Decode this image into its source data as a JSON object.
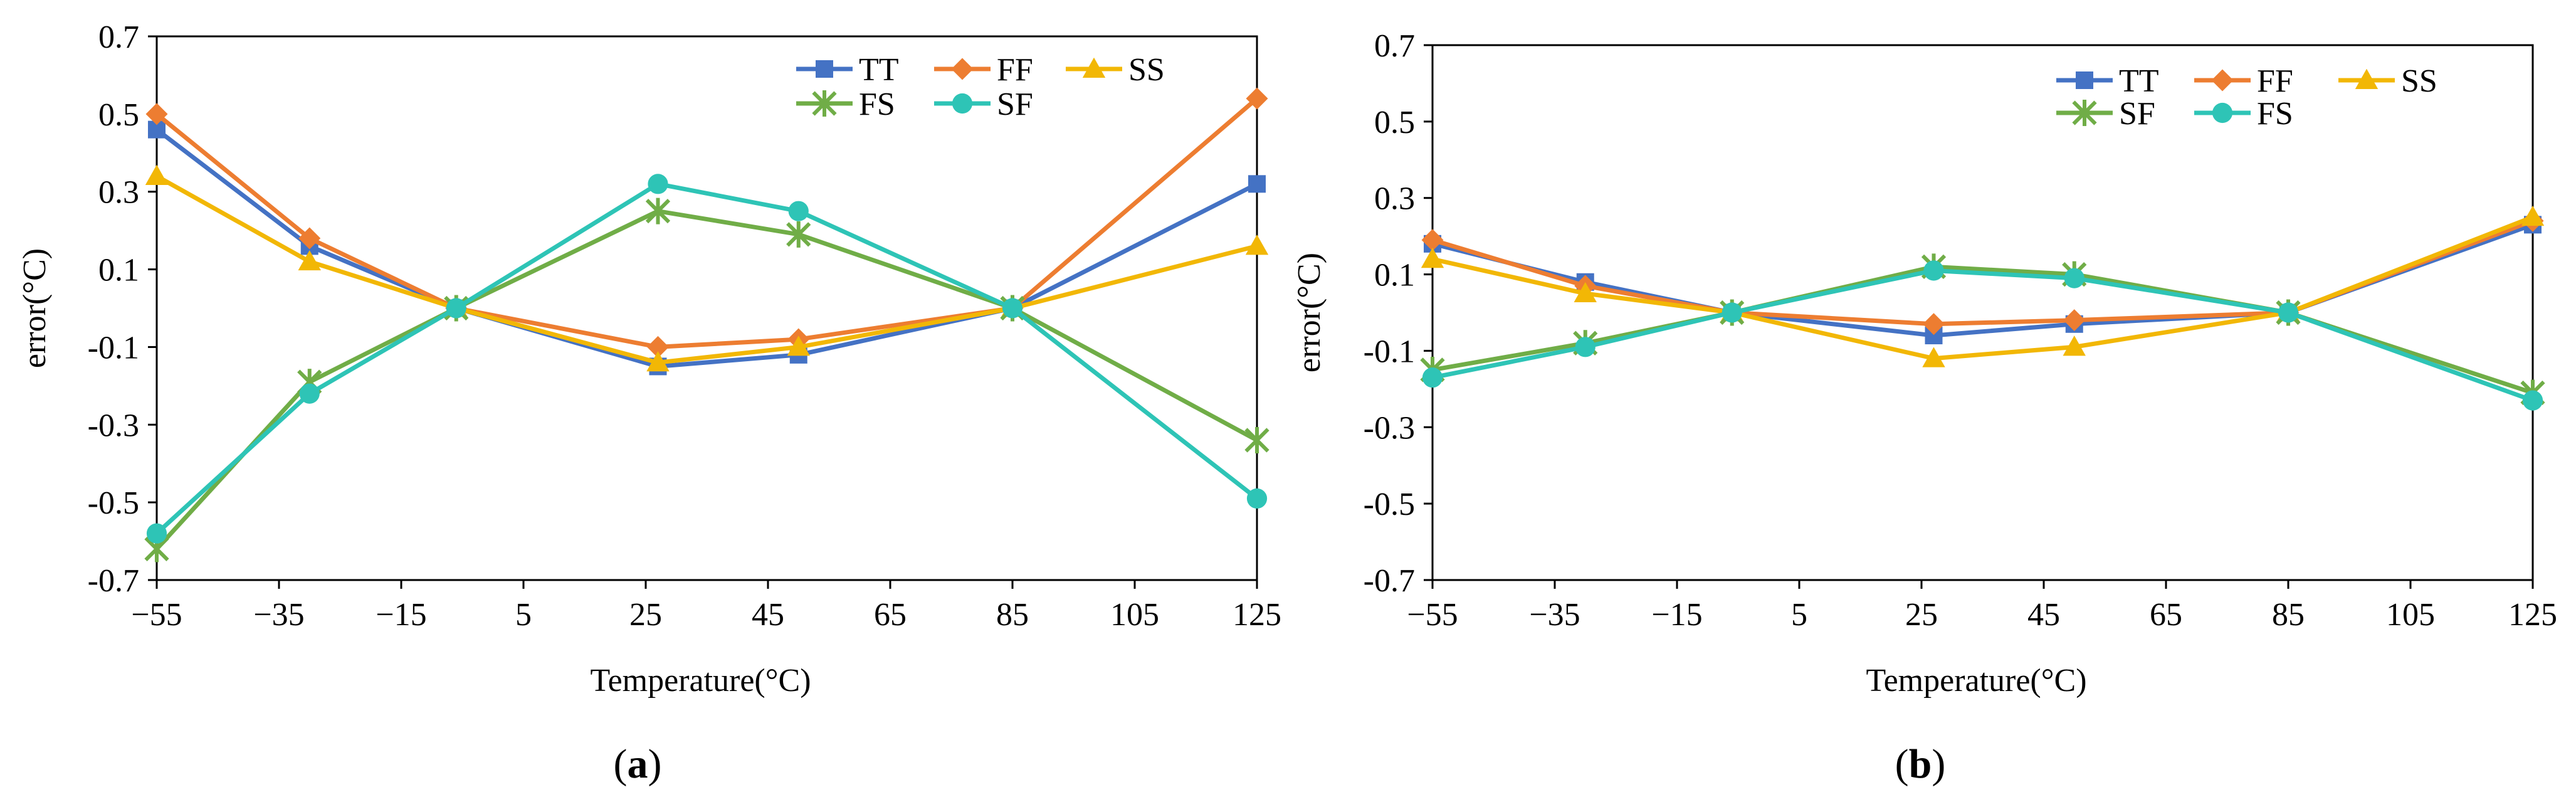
{
  "chart_data": [
    {
      "type": "line",
      "panel": "a",
      "caption": {
        "open": "(",
        "letter": "a",
        "close": ")"
      },
      "xlabel": "Temperature(°C)",
      "ylabel": "error(°C)",
      "xlim": [
        -55,
        125
      ],
      "ylim": [
        -0.7,
        0.7
      ],
      "xticks": [
        -55,
        -35,
        -15,
        5,
        25,
        45,
        65,
        85,
        105,
        125
      ],
      "xtick_labels": [
        "−55",
        "−35",
        "−15",
        "5",
        "25",
        "45",
        "65",
        "85",
        "105",
        "125"
      ],
      "yticks": [
        -0.7,
        -0.5,
        -0.3,
        -0.1,
        0.1,
        0.3,
        0.5,
        0.7
      ],
      "ytick_labels": [
        "-0.7",
        "-0.5",
        "-0.3",
        "-0.1",
        "0.1",
        "0.3",
        "0.5",
        "0.7"
      ],
      "grid": false,
      "legend_position": "top-right",
      "legend_order": [
        "TT",
        "FF",
        "SS",
        "FS",
        "SF"
      ],
      "x": [
        -55,
        -30,
        -6,
        27,
        50,
        85,
        125
      ],
      "series": [
        {
          "name": "TT",
          "color": "#4472C4",
          "marker": "square",
          "values": [
            0.46,
            0.16,
            0.0,
            -0.15,
            -0.12,
            0.0,
            0.32
          ]
        },
        {
          "name": "FF",
          "color": "#ED7D31",
          "marker": "diamond",
          "values": [
            0.5,
            0.18,
            0.0,
            -0.1,
            -0.08,
            0.0,
            0.54
          ]
        },
        {
          "name": "SS",
          "color": "#F2B705",
          "marker": "triangle",
          "values": [
            0.34,
            0.12,
            0.0,
            -0.14,
            -0.1,
            0.0,
            0.16
          ]
        },
        {
          "name": "FS",
          "color": "#70AD47",
          "marker": "star",
          "values": [
            -0.62,
            -0.19,
            0.0,
            0.25,
            0.19,
            0.0,
            -0.34
          ]
        },
        {
          "name": "SF",
          "color": "#2EC4B6",
          "marker": "circle",
          "values": [
            -0.58,
            -0.22,
            0.0,
            0.32,
            0.25,
            0.0,
            -0.49
          ]
        }
      ]
    },
    {
      "type": "line",
      "panel": "b",
      "caption": {
        "open": "(",
        "letter": "b",
        "close": ")"
      },
      "xlabel": "Temperature(°C)",
      "ylabel": "error(°C)",
      "xlim": [
        -55,
        125
      ],
      "ylim": [
        -0.7,
        0.7
      ],
      "xticks": [
        -55,
        -35,
        -15,
        5,
        25,
        45,
        65,
        85,
        105,
        125
      ],
      "xtick_labels": [
        "−55",
        "−35",
        "−15",
        "5",
        "25",
        "45",
        "65",
        "85",
        "105",
        "125"
      ],
      "yticks": [
        -0.7,
        -0.5,
        -0.3,
        -0.1,
        0.1,
        0.3,
        0.5,
        0.7
      ],
      "ytick_labels": [
        "-0.7",
        "-0.5",
        "-0.3",
        "-0.1",
        "0.1",
        "0.3",
        "0.5",
        "0.7"
      ],
      "grid": false,
      "legend_position": "top-right",
      "legend_order": [
        "TT",
        "FF",
        "SS",
        "SF",
        "FS"
      ],
      "x": [
        -55,
        -30,
        -6,
        27,
        50,
        85,
        125
      ],
      "series": [
        {
          "name": "TT",
          "color": "#4472C4",
          "marker": "square",
          "values": [
            0.18,
            0.08,
            0.0,
            -0.06,
            -0.03,
            0.0,
            0.23
          ]
        },
        {
          "name": "FF",
          "color": "#ED7D31",
          "marker": "diamond",
          "values": [
            0.19,
            0.07,
            0.0,
            -0.03,
            -0.02,
            0.0,
            0.24
          ]
        },
        {
          "name": "SS",
          "color": "#F2B705",
          "marker": "triangle",
          "values": [
            0.14,
            0.05,
            0.0,
            -0.12,
            -0.09,
            0.0,
            0.25
          ]
        },
        {
          "name": "SF",
          "color": "#70AD47",
          "marker": "star",
          "values": [
            -0.15,
            -0.08,
            0.0,
            0.12,
            0.1,
            0.0,
            -0.21
          ]
        },
        {
          "name": "FS",
          "color": "#2EC4B6",
          "marker": "circle",
          "values": [
            -0.17,
            -0.09,
            0.0,
            0.11,
            0.09,
            0.0,
            -0.23
          ]
        }
      ]
    }
  ]
}
